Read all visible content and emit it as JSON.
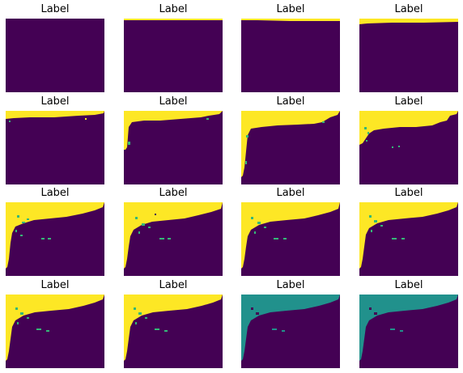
{
  "colors": {
    "background": "#440154",
    "yellow": "#fde725",
    "teal": "#21918c",
    "cyan": "#35b779"
  },
  "panels": [
    {
      "title": "Label",
      "yellow": "p00",
      "teal": ""
    },
    {
      "title": "Label",
      "yellow": "p01",
      "teal": ""
    },
    {
      "title": "Label",
      "yellow": "p02",
      "teal": ""
    },
    {
      "title": "Label",
      "yellow": "p03",
      "teal": ""
    },
    {
      "title": "Label",
      "yellow": "p10",
      "teal": ""
    },
    {
      "title": "Label",
      "yellow": "p11",
      "teal": ""
    },
    {
      "title": "Label",
      "yellow": "p12",
      "teal": ""
    },
    {
      "title": "Label",
      "yellow": "p13",
      "teal": ""
    },
    {
      "title": "Label",
      "yellow": "p20",
      "teal": ""
    },
    {
      "title": "Label",
      "yellow": "p21",
      "teal": ""
    },
    {
      "title": "Label",
      "yellow": "p22",
      "teal": ""
    },
    {
      "title": "Label",
      "yellow": "p23",
      "teal": ""
    },
    {
      "title": "Label",
      "yellow": "p30",
      "teal": ""
    },
    {
      "title": "Label",
      "yellow": "p31",
      "teal": ""
    },
    {
      "title": "Label",
      "yellow": "",
      "teal": "p32"
    },
    {
      "title": "Label",
      "yellow": "",
      "teal": "p33"
    }
  ]
}
